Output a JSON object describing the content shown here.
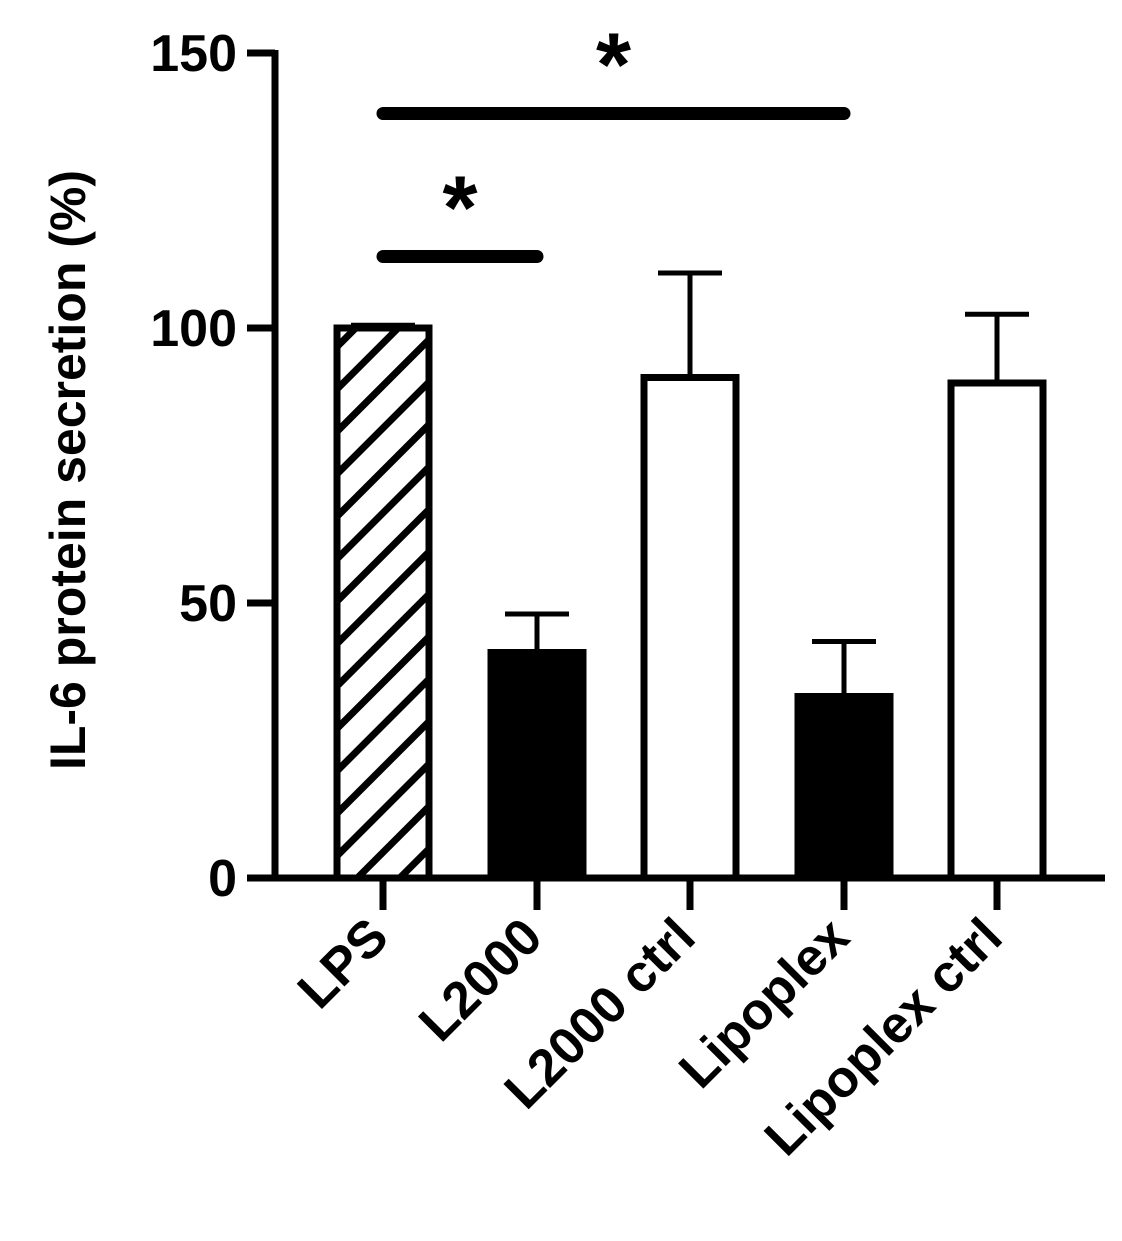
{
  "chart_data": {
    "type": "bar",
    "title": "",
    "ylabel": "IL-6 protein secretion (%)",
    "xlabel": "",
    "ylim": [
      0,
      150
    ],
    "yticks": [
      0,
      50,
      100,
      150
    ],
    "ytick_labels": [
      "0",
      "50",
      "100",
      "150"
    ],
    "categories": [
      "LPS",
      "L2000",
      "L2000 ctrl",
      "Lipoplex",
      "Lipoplex ctrl"
    ],
    "values": [
      100,
      41,
      91,
      33,
      90
    ],
    "errors": [
      0.5,
      7,
      19,
      10,
      12.5
    ],
    "fills": [
      "hatched",
      "black",
      "white",
      "black",
      "white"
    ],
    "significance": [
      {
        "from": "LPS",
        "to": "L2000",
        "y": 113,
        "label": "*"
      },
      {
        "from": "LPS",
        "to": "Lipoplex",
        "y": 139,
        "label": "*"
      }
    ],
    "grid": false,
    "legend": "none"
  }
}
